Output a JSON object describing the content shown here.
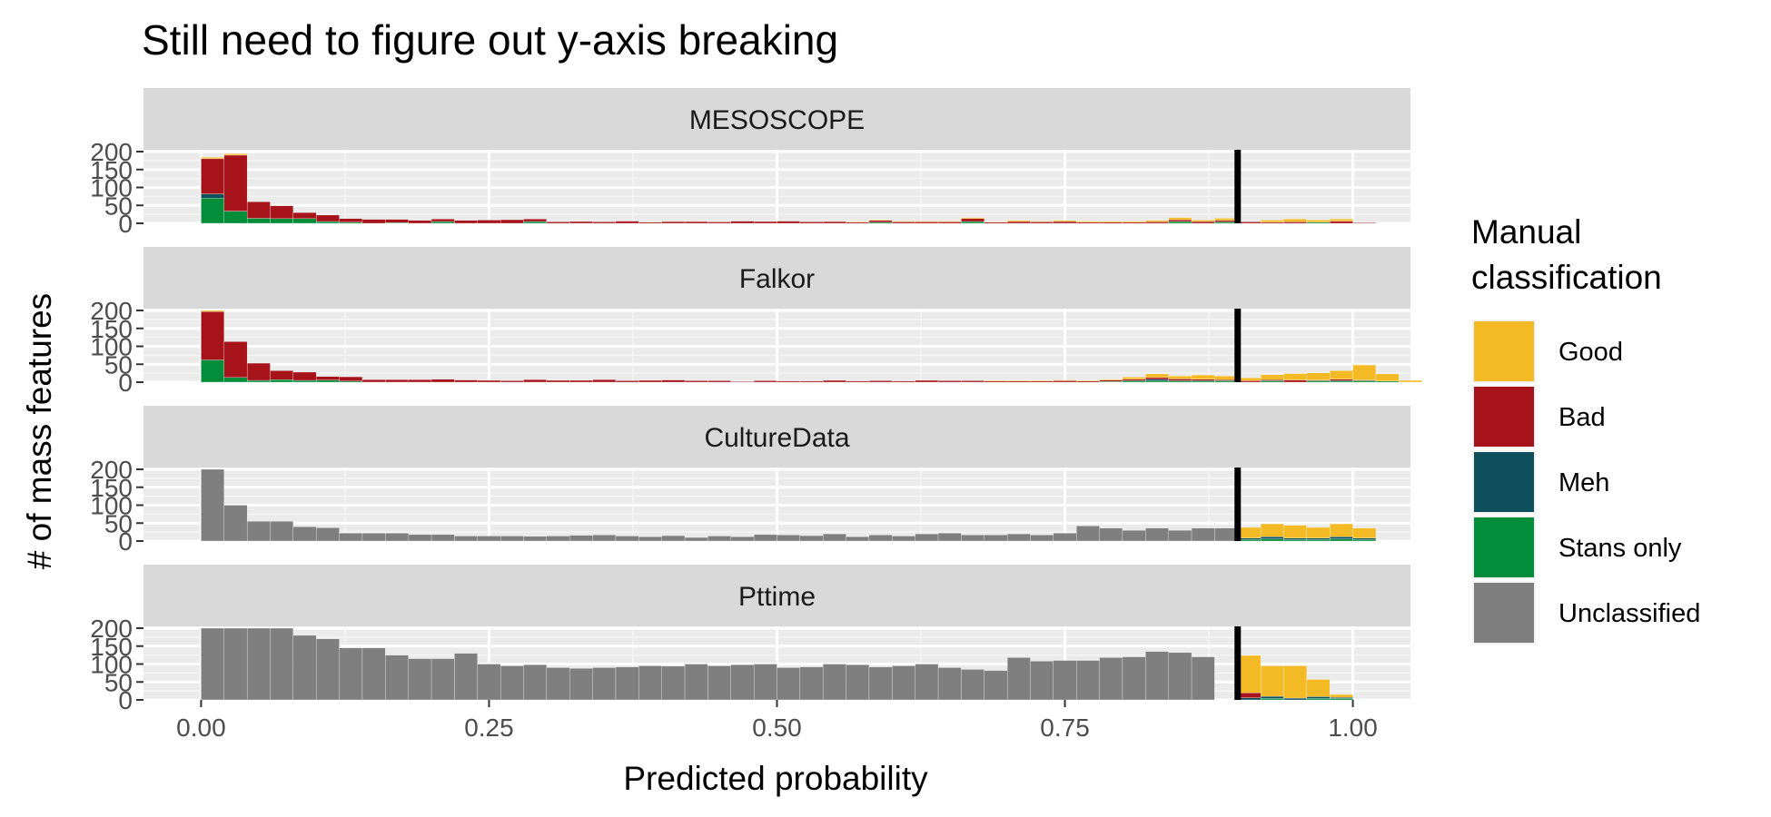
{
  "chart_data": {
    "type": "bar",
    "subtype": "stacked-histogram-facets",
    "title": "Still need to figure out y-axis breaking",
    "xlabel": "Predicted probability",
    "ylabel": "# of mass features",
    "xlim": [
      -0.05,
      1.05
    ],
    "ylim": [
      0,
      200
    ],
    "x_ticks": [
      {
        "value": 0,
        "label": "0.00"
      },
      {
        "value": 0.25,
        "label": "0.25"
      },
      {
        "value": 0.5,
        "label": "0.50"
      },
      {
        "value": 0.75,
        "label": "0.75"
      },
      {
        "value": 1,
        "label": "1.00"
      }
    ],
    "y_ticks": [
      {
        "value": 0,
        "label": "0"
      },
      {
        "value": 50,
        "label": "50"
      },
      {
        "value": 100,
        "label": "100"
      },
      {
        "value": 150,
        "label": "150"
      },
      {
        "value": 200,
        "label": "200"
      }
    ],
    "threshold_line_x": 0.9,
    "bin_width": 0.02,
    "bin_start": 0,
    "grid": true,
    "legend": {
      "title": "Manual classification",
      "position": "right",
      "entries": [
        {
          "name": "Good",
          "color": "#F4BA26"
        },
        {
          "name": "Bad",
          "color": "#A6131A"
        },
        {
          "name": "Meh",
          "color": "#0D4F5C"
        },
        {
          "name": "Stans only",
          "color": "#028D3A"
        },
        {
          "name": "Unclassified",
          "color": "#7F7F7F"
        }
      ]
    },
    "stack_order_bottom_to_top": [
      "Unclassified",
      "Stans only",
      "Meh",
      "Bad",
      "Good"
    ],
    "facets": [
      {
        "name": "MESOSCOPE",
        "series": {
          "Good": [
            4,
            4,
            0,
            0,
            0,
            0,
            0,
            0,
            0,
            0,
            0,
            0,
            0,
            0,
            0,
            0,
            0,
            0,
            0,
            0,
            1,
            1,
            1,
            0,
            0,
            0,
            0,
            1,
            2,
            2,
            2,
            2,
            2,
            3,
            1,
            3,
            2,
            3,
            3,
            3,
            3,
            4,
            6,
            4,
            6,
            0,
            6,
            8,
            6,
            6,
            0,
            0,
            0,
            0
          ],
          "Bad": [
            98,
            156,
            46,
            36,
            17,
            18,
            10,
            11,
            9,
            8,
            7,
            8,
            9,
            10,
            7,
            4,
            5,
            4,
            6,
            3,
            5,
            5,
            4,
            6,
            5,
            6,
            4,
            5,
            3,
            5,
            4,
            4,
            4,
            8,
            3,
            5,
            4,
            5,
            3,
            3,
            3,
            4,
            5,
            5,
            4,
            4,
            3,
            4,
            0,
            6,
            2,
            0,
            0,
            0
          ],
          "Meh": [
            12,
            0,
            0,
            0,
            0,
            0,
            0,
            0,
            0,
            0,
            0,
            0,
            0,
            0,
            0,
            0,
            0,
            0,
            0,
            0,
            0,
            0,
            0,
            0,
            0,
            0,
            0,
            0,
            0,
            0,
            0,
            0,
            0,
            0,
            0,
            0,
            0,
            0,
            0,
            0,
            0,
            0,
            0,
            0,
            0,
            0,
            0,
            0,
            0,
            0,
            0,
            0,
            0,
            0
          ],
          "Stans only": [
            70,
            34,
            14,
            13,
            13,
            5,
            3,
            0,
            2,
            0,
            5,
            0,
            0,
            0,
            5,
            0,
            0,
            0,
            0,
            0,
            0,
            0,
            0,
            0,
            0,
            0,
            0,
            0,
            0,
            3,
            0,
            0,
            0,
            5,
            0,
            0,
            0,
            0,
            0,
            0,
            0,
            0,
            5,
            0,
            4,
            0,
            0,
            0,
            3,
            0,
            0,
            0,
            0,
            0
          ],
          "Unclassified": [
            0,
            0,
            0,
            0,
            0,
            0,
            0,
            0,
            0,
            0,
            0,
            0,
            0,
            0,
            0,
            0,
            0,
            0,
            0,
            0,
            0,
            0,
            0,
            0,
            0,
            0,
            0,
            0,
            0,
            0,
            0,
            0,
            0,
            0,
            0,
            0,
            0,
            0,
            0,
            0,
            0,
            0,
            0,
            0,
            0,
            0,
            0,
            0,
            0,
            0,
            0,
            0,
            0,
            0
          ]
        }
      },
      {
        "name": "Falkor",
        "series": {
          "Good": [
            3,
            0,
            0,
            0,
            0,
            0,
            0,
            0,
            0,
            0,
            0,
            0,
            0,
            0,
            0,
            0,
            0,
            0,
            0,
            0,
            0,
            0,
            0,
            0,
            0,
            0,
            0,
            0,
            0,
            0,
            0,
            0,
            0,
            0,
            2,
            2,
            2,
            2,
            2,
            2,
            6,
            10,
            8,
            12,
            10,
            8,
            14,
            18,
            20,
            24,
            42,
            20,
            5,
            0
          ],
          "Bad": [
            135,
            100,
            48,
            25,
            23,
            10,
            12,
            7,
            7,
            7,
            8,
            6,
            5,
            4,
            7,
            5,
            5,
            7,
            4,
            5,
            6,
            4,
            4,
            2,
            4,
            3,
            3,
            5,
            3,
            4,
            3,
            5,
            4,
            4,
            3,
            3,
            3,
            4,
            3,
            4,
            4,
            5,
            5,
            4,
            3,
            4,
            3,
            6,
            2,
            4,
            2,
            0,
            0,
            0
          ],
          "Meh": [
            0,
            0,
            0,
            0,
            0,
            0,
            0,
            0,
            0,
            0,
            0,
            0,
            0,
            0,
            0,
            0,
            0,
            0,
            0,
            0,
            0,
            0,
            0,
            0,
            0,
            0,
            0,
            0,
            0,
            0,
            0,
            0,
            0,
            0,
            0,
            0,
            0,
            0,
            0,
            0,
            0,
            4,
            0,
            0,
            0,
            0,
            0,
            0,
            0,
            0,
            0,
            0,
            0,
            0
          ],
          "Stans only": [
            62,
            13,
            5,
            7,
            5,
            6,
            3,
            0,
            0,
            0,
            0,
            0,
            0,
            0,
            0,
            0,
            0,
            0,
            0,
            0,
            0,
            0,
            0,
            0,
            0,
            0,
            0,
            0,
            0,
            0,
            0,
            0,
            0,
            0,
            0,
            0,
            0,
            0,
            0,
            2,
            4,
            4,
            4,
            4,
            4,
            0,
            4,
            0,
            4,
            4,
            4,
            3,
            0,
            0
          ],
          "Unclassified": [
            0,
            0,
            0,
            0,
            0,
            0,
            0,
            0,
            0,
            0,
            0,
            0,
            0,
            0,
            0,
            0,
            0,
            0,
            0,
            0,
            0,
            0,
            0,
            0,
            0,
            0,
            0,
            0,
            0,
            0,
            0,
            0,
            0,
            0,
            0,
            0,
            0,
            0,
            0,
            0,
            0,
            0,
            0,
            0,
            0,
            0,
            0,
            0,
            0,
            0,
            0,
            0,
            0,
            0
          ]
        }
      },
      {
        "name": "CultureData",
        "series": {
          "Good": [
            0,
            0,
            0,
            0,
            0,
            0,
            0,
            0,
            0,
            0,
            0,
            0,
            0,
            0,
            0,
            0,
            0,
            0,
            0,
            0,
            0,
            0,
            0,
            0,
            0,
            0,
            0,
            0,
            0,
            0,
            0,
            0,
            0,
            0,
            0,
            0,
            0,
            0,
            0,
            0,
            0,
            0,
            0,
            0,
            0,
            30,
            36,
            36,
            30,
            36,
            28,
            0,
            0,
            0
          ],
          "Bad": [
            0,
            0,
            0,
            0,
            0,
            0,
            0,
            0,
            0,
            0,
            0,
            0,
            0,
            0,
            0,
            0,
            0,
            0,
            0,
            0,
            0,
            0,
            0,
            0,
            0,
            0,
            0,
            0,
            0,
            0,
            0,
            0,
            0,
            0,
            0,
            0,
            0,
            0,
            0,
            0,
            0,
            0,
            0,
            0,
            0,
            0,
            0,
            0,
            0,
            0,
            0,
            0,
            0,
            0
          ],
          "Meh": [
            0,
            0,
            0,
            0,
            0,
            0,
            0,
            0,
            0,
            0,
            0,
            0,
            0,
            0,
            0,
            0,
            0,
            0,
            0,
            0,
            0,
            0,
            0,
            0,
            0,
            0,
            0,
            0,
            0,
            0,
            0,
            0,
            0,
            0,
            0,
            0,
            0,
            0,
            0,
            0,
            0,
            0,
            0,
            0,
            0,
            4,
            6,
            4,
            4,
            6,
            4,
            0,
            0,
            0
          ],
          "Stans only": [
            0,
            0,
            0,
            0,
            0,
            0,
            0,
            0,
            0,
            0,
            0,
            0,
            0,
            0,
            0,
            0,
            0,
            0,
            0,
            0,
            0,
            0,
            0,
            0,
            0,
            0,
            0,
            0,
            0,
            0,
            0,
            0,
            0,
            0,
            0,
            0,
            0,
            0,
            0,
            0,
            0,
            0,
            0,
            0,
            0,
            4,
            6,
            4,
            4,
            6,
            4,
            0,
            0,
            0
          ],
          "Unclassified": [
            200,
            100,
            55,
            55,
            40,
            37,
            22,
            22,
            22,
            18,
            18,
            14,
            14,
            14,
            13,
            14,
            16,
            17,
            14,
            12,
            15,
            10,
            14,
            12,
            18,
            17,
            15,
            20,
            12,
            17,
            14,
            20,
            22,
            17,
            17,
            20,
            17,
            22,
            42,
            36,
            30,
            36,
            30,
            36,
            36,
            0,
            0,
            0,
            0,
            0,
            0,
            0,
            0,
            0
          ]
        }
      },
      {
        "name": "Pttime",
        "series": {
          "Good": [
            0,
            0,
            0,
            0,
            0,
            0,
            0,
            0,
            0,
            0,
            0,
            0,
            0,
            0,
            0,
            0,
            0,
            0,
            0,
            0,
            0,
            0,
            0,
            0,
            0,
            0,
            0,
            0,
            0,
            0,
            0,
            0,
            0,
            0,
            0,
            0,
            0,
            0,
            0,
            0,
            0,
            0,
            0,
            0,
            0,
            104,
            85,
            90,
            48,
            8,
            0,
            0,
            0,
            0
          ],
          "Bad": [
            0,
            0,
            0,
            0,
            0,
            0,
            0,
            0,
            0,
            0,
            0,
            0,
            0,
            0,
            0,
            0,
            0,
            0,
            0,
            0,
            0,
            0,
            0,
            0,
            0,
            0,
            0,
            0,
            0,
            0,
            0,
            0,
            0,
            0,
            0,
            0,
            0,
            0,
            0,
            0,
            0,
            0,
            0,
            0,
            0,
            14,
            0,
            0,
            0,
            0,
            0,
            0,
            0,
            0
          ],
          "Meh": [
            0,
            0,
            0,
            0,
            0,
            0,
            0,
            0,
            0,
            0,
            0,
            0,
            0,
            0,
            0,
            0,
            0,
            0,
            0,
            0,
            0,
            0,
            0,
            0,
            0,
            0,
            0,
            0,
            0,
            0,
            0,
            0,
            0,
            0,
            0,
            0,
            0,
            0,
            0,
            0,
            0,
            0,
            0,
            0,
            0,
            6,
            6,
            5,
            5,
            3,
            0,
            0,
            0,
            0
          ],
          "Stans only": [
            0,
            0,
            0,
            0,
            0,
            0,
            0,
            0,
            0,
            0,
            0,
            0,
            0,
            0,
            0,
            0,
            0,
            0,
            0,
            0,
            0,
            0,
            0,
            0,
            0,
            0,
            0,
            0,
            0,
            0,
            0,
            0,
            0,
            0,
            0,
            0,
            0,
            0,
            0,
            0,
            0,
            0,
            0,
            0,
            0,
            0,
            4,
            0,
            4,
            4,
            0,
            0,
            0,
            0
          ],
          "Unclassified": [
            200,
            200,
            200,
            200,
            180,
            170,
            145,
            145,
            125,
            115,
            115,
            130,
            100,
            95,
            98,
            90,
            88,
            90,
            92,
            95,
            94,
            100,
            95,
            98,
            100,
            90,
            92,
            100,
            98,
            92,
            95,
            100,
            90,
            85,
            82,
            118,
            108,
            110,
            110,
            118,
            120,
            135,
            132,
            120,
            0,
            0,
            0,
            0,
            0,
            0,
            0,
            0,
            0,
            0
          ]
        }
      }
    ]
  }
}
